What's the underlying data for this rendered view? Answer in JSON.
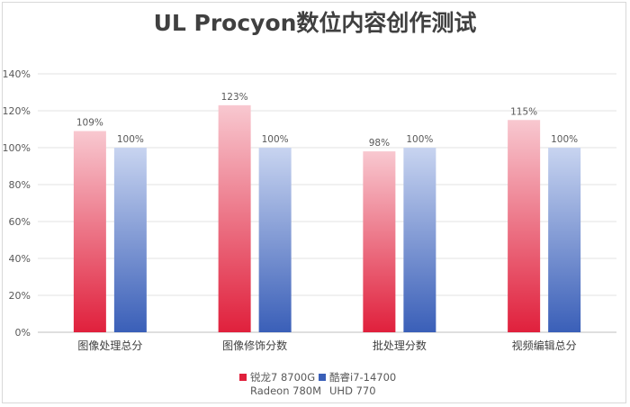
{
  "chart_data": {
    "type": "bar",
    "title": "UL Procyon数位内容创作测试",
    "categories": [
      "图像处理总分",
      "图像修饰分数",
      "批处理分数",
      "视频编辑总分"
    ],
    "series": [
      {
        "name_line1": "锐龙7 8700G",
        "name_line2": "Radeon 780M",
        "values": [
          109,
          123,
          98,
          115
        ],
        "labels": [
          "109%",
          "123%",
          "98%",
          "115%"
        ],
        "color_top": "#f8c8d0",
        "color_bottom": "#e0203c"
      },
      {
        "name_line1": "酷睿i7-14700",
        "name_line2": "UHD 770",
        "values": [
          100,
          100,
          100,
          100
        ],
        "labels": [
          "100%",
          "100%",
          "100%",
          "100%"
        ],
        "color_top": "#c8d4f0",
        "color_bottom": "#3a5fb8"
      }
    ],
    "y_ticks": [
      "0%",
      "20%",
      "40%",
      "60%",
      "80%",
      "100%",
      "120%",
      "140%"
    ],
    "ylim": [
      0,
      140
    ],
    "grid": true,
    "legend_position": "bottom"
  }
}
